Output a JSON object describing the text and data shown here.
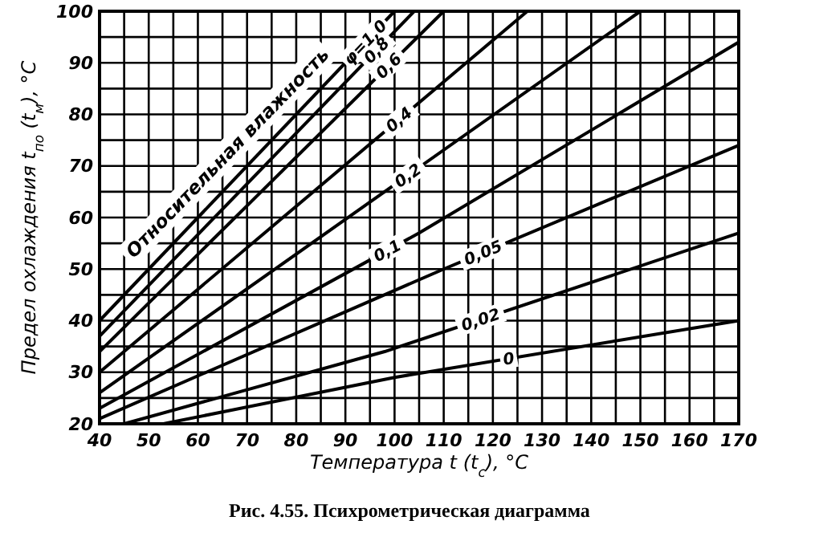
{
  "chart_data": {
    "type": "line",
    "title": "Рис. 4.55. Психрометрическая диаграмма",
    "xlabel": "Температура t (t$_{c}$), °C",
    "ylabel": "Предел охлаждения t$_{по}$ (t$_{м}$), °C",
    "annotations": [
      "Относительная влажность"
    ],
    "xlim": [
      40,
      170
    ],
    "ylim": [
      20,
      100
    ],
    "xticks": [
      40,
      {
        "value": 45,
        "label": null
      },
      50,
      {
        "value": 55,
        "label": null
      },
      60,
      {
        "value": 65,
        "label": null
      },
      70,
      {
        "value": 75,
        "label": null
      },
      80,
      {
        "value": 85,
        "label": null
      },
      90,
      {
        "value": 95,
        "label": null
      },
      100,
      {
        "value": 105,
        "label": null
      },
      110,
      {
        "value": 115,
        "label": null
      },
      120,
      {
        "value": 125,
        "label": null
      },
      130,
      {
        "value": 135,
        "label": null
      },
      140,
      {
        "value": 145,
        "label": null
      },
      150,
      {
        "value": 155,
        "label": null
      },
      160,
      {
        "value": 165,
        "label": null
      },
      170
    ],
    "yticks": [
      20,
      {
        "value": 25,
        "label": null
      },
      30,
      {
        "value": 35,
        "label": null
      },
      40,
      {
        "value": 45,
        "label": null
      },
      50,
      {
        "value": 55,
        "label": null
      },
      60,
      {
        "value": 65,
        "label": null
      },
      70,
      {
        "value": 75,
        "label": null
      },
      80,
      {
        "value": 85,
        "label": null
      },
      90,
      {
        "value": 95,
        "label": null
      },
      100
    ],
    "grid": true,
    "marker": "none",
    "line_style": "solid",
    "legend": false,
    "series": [
      {
        "name": "φ=1,0",
        "color": "#000000",
        "x": [
          40,
          100
        ],
        "values": [
          40,
          100
        ]
      },
      {
        "name": "0,8",
        "color": "#000000",
        "x": [
          40,
          104
        ],
        "values": [
          37,
          100
        ]
      },
      {
        "name": "0,6",
        "color": "#000000",
        "x": [
          40,
          110
        ],
        "values": [
          34,
          100
        ]
      },
      {
        "name": "0,4",
        "color": "#000000",
        "x": [
          40,
          127
        ],
        "values": [
          30,
          100
        ]
      },
      {
        "name": "0,2",
        "color": "#000000",
        "x": [
          40,
          150
        ],
        "values": [
          26,
          100
        ]
      },
      {
        "name": "0,1",
        "color": "#000000",
        "x": [
          40,
          105,
          170
        ],
        "values": [
          23,
          57,
          94
        ]
      },
      {
        "name": "0,05",
        "color": "#000000",
        "x": [
          40,
          110,
          170
        ],
        "values": [
          21,
          50,
          74
        ]
      },
      {
        "name": "0,02",
        "color": "#000000",
        "x": [
          45,
          98,
          170
        ],
        "values": [
          20,
          34,
          57
        ]
      },
      {
        "name": "0",
        "color": "#000000",
        "x": [
          53,
          100,
          170
        ],
        "values": [
          20,
          29,
          40
        ]
      }
    ]
  }
}
